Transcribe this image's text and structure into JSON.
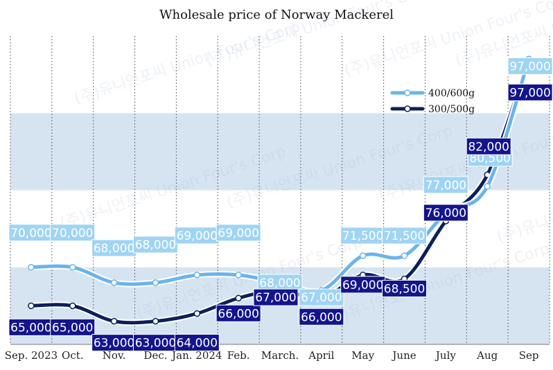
{
  "chart_data": {
    "type": "line",
    "title": "Wholesale price of Norway Mackerel",
    "xlabel": "",
    "ylabel": "",
    "categories": [
      "Sep. 2023",
      "Oct.",
      "Nov.",
      "Dec.",
      "Jan. 2024",
      "Feb.",
      "March.",
      "April",
      "May",
      "June",
      "July",
      "Aug",
      "Sep"
    ],
    "series": [
      {
        "name": "400/600g",
        "color": "#6ab4ec",
        "values": [
          70000,
          70000,
          68000,
          68000,
          69000,
          69000,
          68000,
          67000,
          71500,
          71500,
          77000,
          80500,
          97000
        ],
        "data_labels": [
          "70,000",
          "70,000",
          "68,000",
          "68,000",
          "69,000",
          "69,000",
          "68,000",
          "67,000",
          "71,500",
          "71,500",
          "77,000",
          "80,500",
          "97,000"
        ]
      },
      {
        "name": "300/500g",
        "color": "#0d1f5c",
        "values": [
          65000,
          65000,
          63000,
          63000,
          64000,
          66000,
          67000,
          66000,
          69000,
          68500,
          76000,
          82000,
          97000
        ],
        "data_labels": [
          "65,000",
          "65,000",
          "63,000",
          "63,000",
          "64,000",
          "66,000",
          "67,000",
          "66,000",
          "69,000",
          "68,500",
          "76,000",
          "82,000",
          "97,000"
        ]
      }
    ],
    "ylim": [
      60000,
      100000
    ],
    "grid": true,
    "legend_position": "top-right",
    "band_colors": [
      "#d6e4f2",
      "#ffffff"
    ],
    "label_bg": [
      "#9fd4f4",
      "#14148c"
    ],
    "label_fg": [
      "#ffffff",
      "#ffffff"
    ]
  },
  "watermark": "(주)유니언포씨 Union Four's Corp"
}
